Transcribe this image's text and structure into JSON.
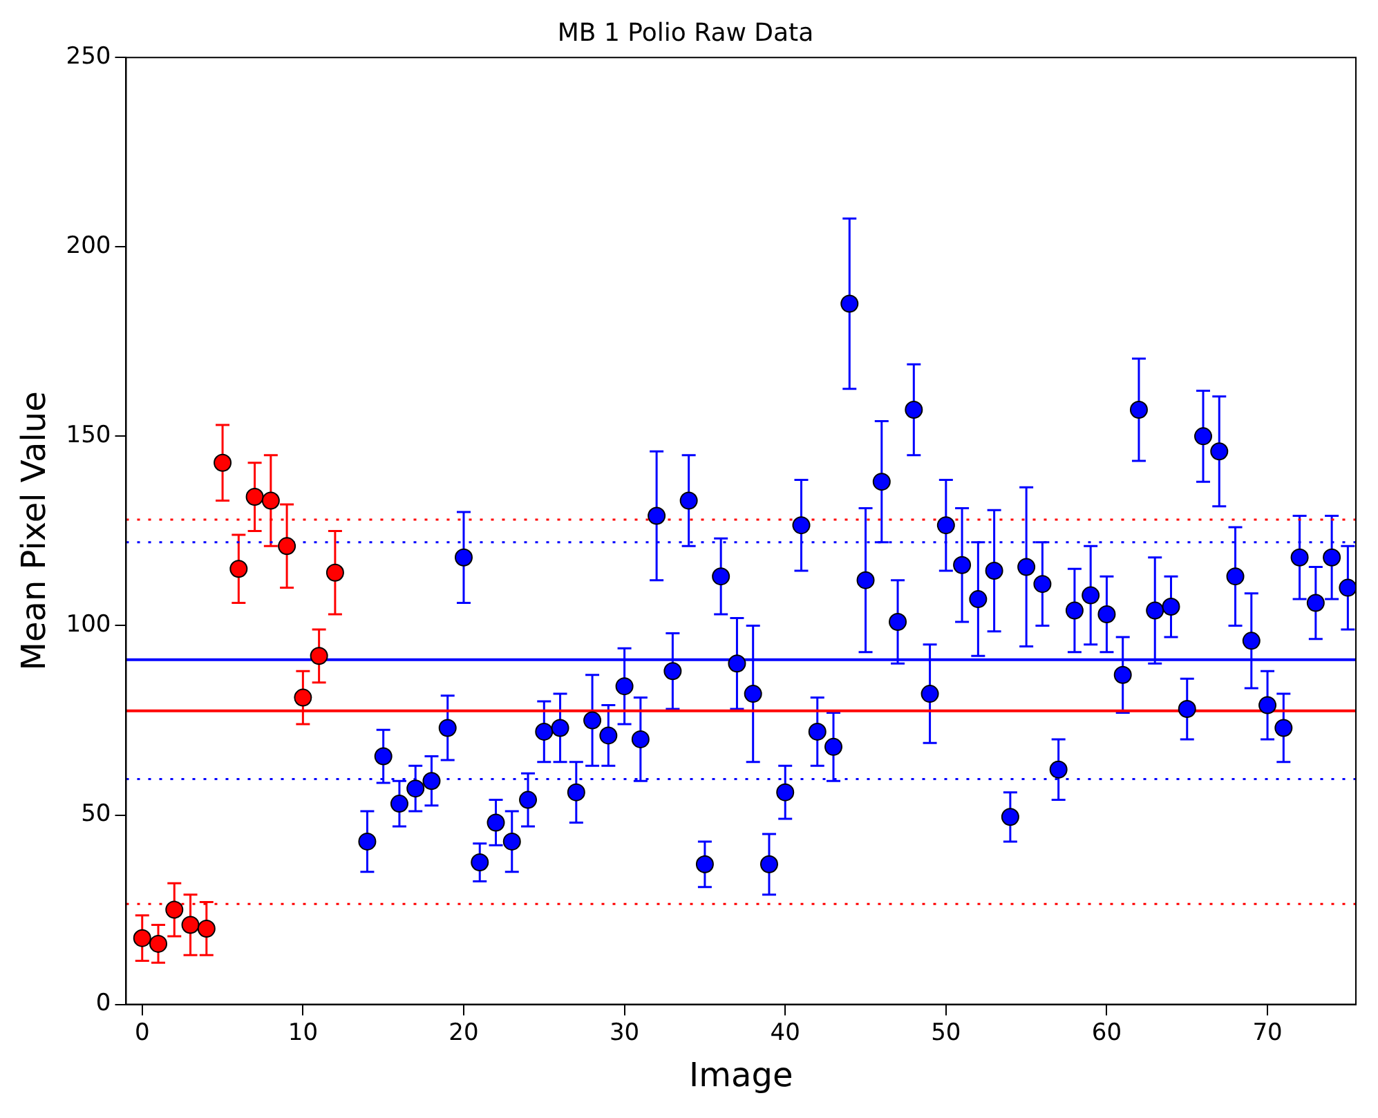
{
  "chart_data": {
    "type": "scatter",
    "title": "MB 1 Polio Raw Data",
    "xlabel": "Image",
    "ylabel": "Mean Pixel Value",
    "xlim": [
      -1,
      75.5
    ],
    "xticks": [
      0,
      10,
      20,
      30,
      40,
      50,
      60,
      70
    ],
    "ylim": [
      0,
      250
    ],
    "yticks": [
      0,
      50,
      100,
      150,
      200,
      250
    ],
    "grid": false,
    "legend": false,
    "marker": "circle",
    "series": [
      {
        "color": "#ff0000",
        "x": [
          0,
          1,
          2,
          3,
          4,
          5,
          6,
          7,
          8,
          9,
          10,
          11,
          12
        ],
        "values": [
          17.5,
          16,
          25,
          21,
          20,
          143,
          115,
          134,
          133,
          121,
          81,
          92,
          114
        ],
        "errors": [
          6,
          5,
          7,
          8,
          7,
          10,
          9,
          9,
          12,
          11,
          7,
          7,
          11
        ]
      },
      {
        "color": "#0000ff",
        "x": [
          14,
          15,
          16,
          17,
          18,
          19,
          20,
          21,
          22,
          23,
          24,
          25,
          26,
          27,
          28,
          29,
          30,
          31,
          32,
          33,
          34,
          35,
          36,
          37,
          38,
          39,
          40,
          41,
          42,
          43,
          44,
          45,
          46,
          47,
          48,
          49,
          50,
          51,
          52,
          53,
          54,
          55,
          56,
          57,
          58,
          59,
          60,
          61,
          62,
          63,
          64,
          65,
          66,
          67,
          68,
          69,
          70,
          71,
          72,
          73,
          74,
          75
        ],
        "values": [
          43,
          65.5,
          53,
          57,
          59,
          73,
          118,
          37.5,
          48,
          43,
          54,
          72,
          73,
          56,
          75,
          71,
          84,
          70,
          129,
          88,
          133,
          37,
          113,
          90,
          82,
          37,
          56,
          126.5,
          72,
          68,
          185,
          112,
          138,
          101,
          157,
          82,
          126.5,
          116,
          107,
          114.5,
          49.5,
          115.5,
          111,
          62,
          104,
          108,
          103,
          87,
          157,
          104,
          105,
          78,
          150,
          146,
          113,
          96,
          79,
          73,
          118,
          106,
          118,
          110
        ],
        "errors": [
          8,
          7,
          6,
          6,
          6.5,
          8.5,
          12,
          5,
          6,
          8,
          7,
          8,
          9,
          8,
          12,
          8,
          10,
          11,
          17,
          10,
          12,
          6,
          10,
          12,
          18,
          8,
          7,
          12,
          9,
          9,
          22.5,
          19,
          16,
          11,
          12,
          13,
          12,
          15,
          15,
          16,
          6.5,
          21,
          11,
          8,
          11,
          13,
          10,
          10,
          13.5,
          14,
          8,
          8,
          12,
          14.5,
          13,
          12.5,
          9,
          9,
          11,
          9.5,
          11,
          11
        ]
      }
    ],
    "ref_lines": [
      {
        "axis": "y",
        "value": 91,
        "color": "#0000ff",
        "line_style": "solid"
      },
      {
        "axis": "y",
        "value": 122,
        "color": "#0000ff",
        "line_style": "dotted"
      },
      {
        "axis": "y",
        "value": 59.5,
        "color": "#0000ff",
        "line_style": "dotted"
      },
      {
        "axis": "y",
        "value": 77.5,
        "color": "#ff0000",
        "line_style": "solid"
      },
      {
        "axis": "y",
        "value": 128,
        "color": "#ff0000",
        "line_style": "dotted"
      },
      {
        "axis": "y",
        "value": 26.5,
        "color": "#ff0000",
        "line_style": "dotted"
      }
    ]
  }
}
